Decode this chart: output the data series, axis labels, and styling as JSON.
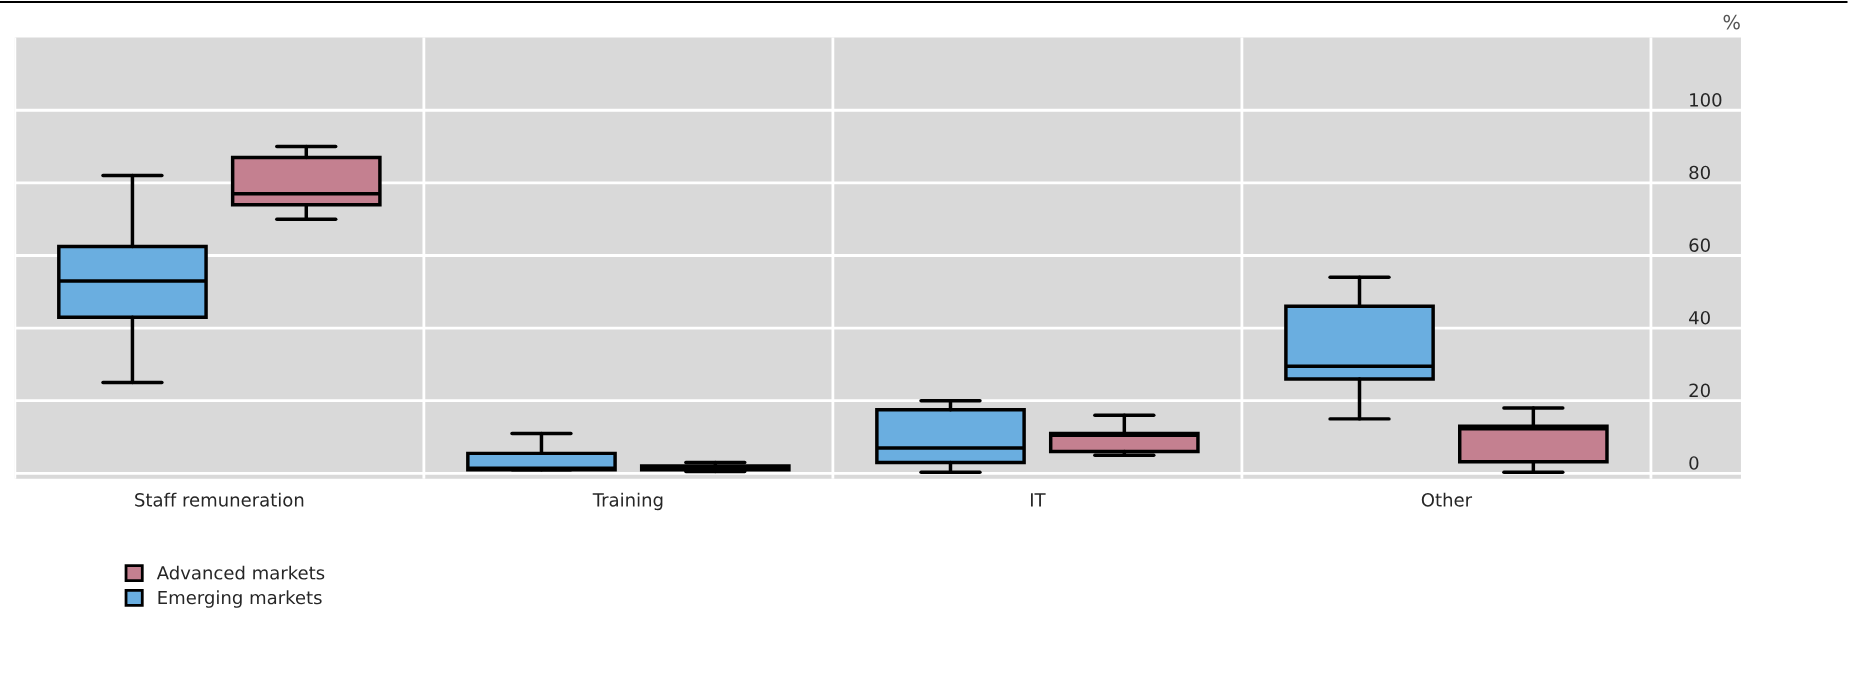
{
  "chart_data": {
    "type": "box",
    "ylabel": "%",
    "categories": [
      "Staff remuneration",
      "Training",
      "IT",
      "Other"
    ],
    "ylim": [
      -1.5,
      120
    ],
    "yticks": [
      0,
      20,
      40,
      60,
      80,
      100
    ],
    "grid": true,
    "legend": "bottom left",
    "series": [
      {
        "name": "Emerging markets",
        "color": "#6aaee0",
        "boxes": [
          {
            "low": 25,
            "q1": 43,
            "median": 53,
            "q3": 62.5,
            "high": 82
          },
          {
            "low": 1,
            "q1": 1,
            "median": 1.4,
            "q3": 5.5,
            "high": 11
          },
          {
            "low": 0.3,
            "q1": 3,
            "median": 7,
            "q3": 17.5,
            "high": 20
          },
          {
            "low": 15,
            "q1": 26,
            "median": 29.5,
            "q3": 46,
            "high": 54
          }
        ]
      },
      {
        "name": "Advanced markets",
        "color": "#c48090",
        "boxes": [
          {
            "low": 70,
            "q1": 74,
            "median": 77,
            "q3": 87,
            "high": 90
          },
          {
            "low": 0.5,
            "q1": 1,
            "median": 1.7,
            "q3": 2,
            "high": 3
          },
          {
            "low": 5,
            "q1": 6,
            "median": 10.5,
            "q3": 11,
            "high": 16
          },
          {
            "low": 0.3,
            "q1": 3.2,
            "median": 12.3,
            "q3": 13,
            "high": 18
          }
        ]
      }
    ]
  }
}
